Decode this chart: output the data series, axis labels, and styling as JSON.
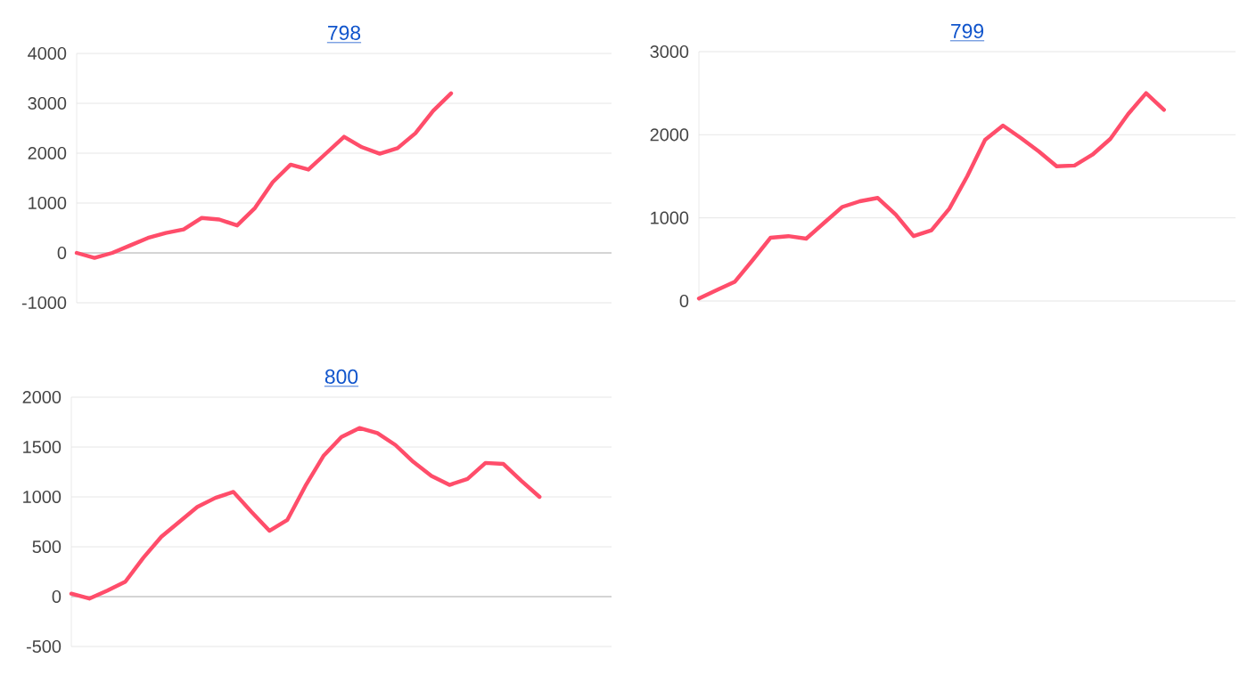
{
  "chart_data": [
    {
      "type": "line",
      "title": "798",
      "color": "#ff4d6a",
      "grid": "y",
      "tick_labels": "y",
      "ylim": [
        -1000,
        4000
      ],
      "yticks": [
        -1000,
        0,
        1000,
        2000,
        3000,
        4000
      ],
      "categories": [
        null,
        null,
        null,
        null,
        null,
        null,
        null,
        null,
        null,
        null,
        null,
        null,
        null,
        null,
        null,
        null,
        null,
        null,
        null,
        null,
        null,
        null,
        null,
        null,
        null,
        null,
        null,
        null,
        null,
        null,
        null
      ],
      "values": [
        0,
        -100,
        0,
        150,
        300,
        400,
        470,
        700,
        670,
        550,
        900,
        1420,
        1770,
        1670,
        2000,
        2330,
        2120,
        1990,
        2100,
        2400,
        2850,
        3200,
        null,
        null,
        null,
        null,
        null,
        null,
        null,
        null,
        null
      ]
    },
    {
      "type": "line",
      "title": "799",
      "color": "#ff4d6a",
      "grid": "y",
      "tick_labels": "y",
      "ylim": [
        0,
        3000
      ],
      "yticks": [
        0,
        1000,
        2000,
        3000
      ],
      "categories": [
        null,
        null,
        null,
        null,
        null,
        null,
        null,
        null,
        null,
        null,
        null,
        null,
        null,
        null,
        null,
        null,
        null,
        null,
        null,
        null,
        null,
        null,
        null,
        null,
        null,
        null,
        null,
        null,
        null,
        null,
        null
      ],
      "values": [
        30,
        130,
        230,
        490,
        760,
        780,
        750,
        940,
        1130,
        1200,
        1240,
        1040,
        780,
        850,
        1110,
        1500,
        1940,
        2110,
        1960,
        1800,
        1620,
        1630,
        1760,
        1950,
        2250,
        2500,
        2300,
        null,
        null,
        null,
        null
      ]
    },
    {
      "type": "line",
      "title": "800",
      "color": "#ff4d6a",
      "grid": "y",
      "tick_labels": "y",
      "ylim": [
        -500,
        2000
      ],
      "yticks": [
        -500,
        0,
        500,
        1000,
        1500,
        2000
      ],
      "categories": [
        null,
        null,
        null,
        null,
        null,
        null,
        null,
        null,
        null,
        null,
        null,
        null,
        null,
        null,
        null,
        null,
        null,
        null,
        null,
        null,
        null,
        null,
        null,
        null,
        null,
        null,
        null,
        null,
        null,
        null,
        null
      ],
      "values": [
        30,
        -20,
        60,
        150,
        390,
        600,
        750,
        900,
        990,
        1050,
        850,
        660,
        770,
        1110,
        1410,
        1600,
        1690,
        1640,
        1520,
        1350,
        1210,
        1120,
        1180,
        1340,
        1330,
        1160,
        1000,
        null,
        null,
        null,
        null
      ]
    }
  ]
}
